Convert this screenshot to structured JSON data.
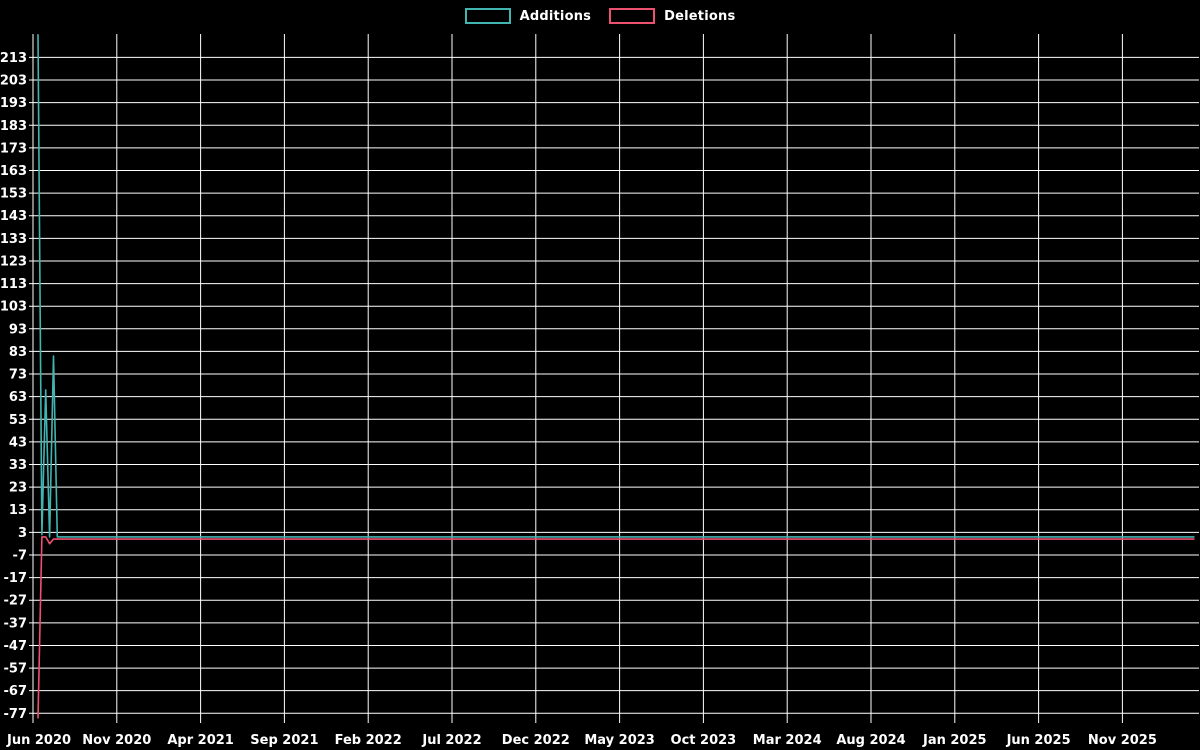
{
  "chart_data": {
    "type": "line",
    "title": "",
    "background_color": "#000000",
    "grid_color": "#ffffff",
    "text_color": "#ffffff",
    "grid": true,
    "legend_position": "top-center",
    "x_axis": {
      "label": "",
      "tick_labels": [
        "Jun 2020",
        "Nov 2020",
        "Apr 2021",
        "Sep 2021",
        "Feb 2022",
        "Jul 2022",
        "Dec 2022",
        "May 2023",
        "Oct 2023",
        "Mar 2024",
        "Aug 2024",
        "Jan 2025",
        "Jun 2025",
        "Nov 2025"
      ],
      "tick_interval_months": 5,
      "data_resolution": "weekly"
    },
    "y_axis": {
      "label": "",
      "min": -77,
      "max": 213,
      "step": 10,
      "ticks": [
        213,
        203,
        193,
        183,
        173,
        163,
        153,
        143,
        133,
        123,
        113,
        103,
        93,
        83,
        73,
        63,
        53,
        43,
        33,
        23,
        13,
        3,
        -7,
        -17,
        -27,
        -37,
        -47,
        -57,
        -67,
        -77
      ]
    },
    "series": [
      {
        "name": "Additions",
        "color": "#42b4b1",
        "x_unit": "weeks since mid-June 2020",
        "points": [
          [
            0,
            223
          ],
          [
            1,
            2
          ],
          [
            2,
            66
          ],
          [
            3,
            1
          ],
          [
            4,
            81
          ],
          [
            5,
            1
          ],
          [
            299,
            1
          ]
        ]
      },
      {
        "name": "Deletions",
        "color": "#ee5170",
        "x_unit": "weeks since mid-June 2020",
        "points": [
          [
            0,
            -79
          ],
          [
            1,
            1
          ],
          [
            2,
            1
          ],
          [
            3,
            -2
          ],
          [
            4,
            0
          ],
          [
            5,
            0
          ],
          [
            299,
            0
          ]
        ]
      }
    ]
  }
}
